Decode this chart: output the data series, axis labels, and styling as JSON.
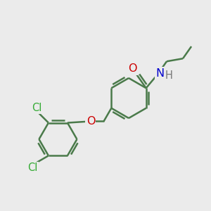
{
  "background_color": "#ebebeb",
  "bond_color": "#4a7a4a",
  "bond_width": 1.8,
  "atom_colors": {
    "O": "#cc0000",
    "N": "#0000cc",
    "Cl": "#33aa33",
    "H": "#777777",
    "C": "#4a7a4a"
  },
  "font_size": 10.5,
  "fig_width": 3.0,
  "fig_height": 3.0,
  "dpi": 100
}
